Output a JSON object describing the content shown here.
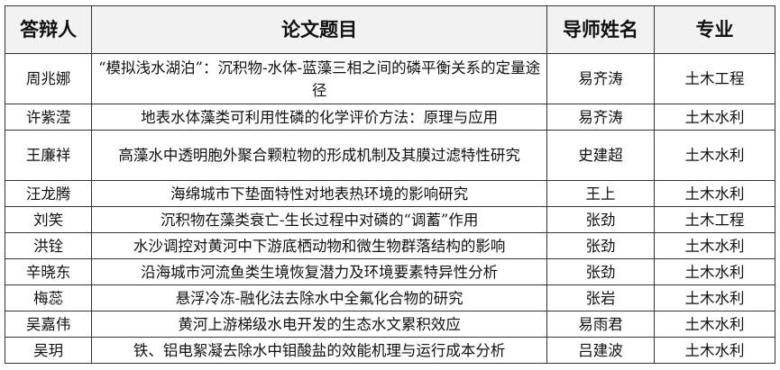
{
  "headers": [
    "答辩人",
    "论文题目",
    "导师姓名",
    "专业"
  ],
  "rows": [
    {
      "name": "周兆娜",
      "title": "“模拟浅水湖泊”：沉积物-水体-蓝藻三相之间的磷平衡关系的定量途径",
      "advisor": "易齐涛",
      "major": "土木工程"
    },
    {
      "name": "许紫滢",
      "title": "地表水体藻类可利用性磷的化学评价方法：原理与应用",
      "advisor": "易齐涛",
      "major": "土木水利"
    },
    {
      "name": "王廉祥",
      "title": "高藻水中透明胞外聚合颗粒物的形成机制及其膜过滤特性研究",
      "advisor": "史建超",
      "major": "土木水利"
    },
    {
      "name": "汪龙腾",
      "title": "海绵城市下垫面特性对地表热环境的影响研究",
      "advisor": "王上",
      "major": "土木水利"
    },
    {
      "name": "刘笑",
      "title": "沉积物在藻类衰亡-生长过程中对磷的“调蓄”作用",
      "advisor": "张劲",
      "major": "土木工程"
    },
    {
      "name": "洪铨",
      "title": "水沙调控对黄河中下游底栖动物和微生物群落结构的影响",
      "advisor": "张劲",
      "major": "土木水利"
    },
    {
      "name": "辛晓东",
      "title": "沿海城市河流鱼类生境恢复潜力及环境要素特异性分析",
      "advisor": "张劲",
      "major": "土木水利"
    },
    {
      "name": "梅蕊",
      "title": "悬浮冷冻-融化法去除水中全氟化合物的研究",
      "advisor": "张岩",
      "major": "土木水利"
    },
    {
      "name": "吴嘉伟",
      "title": "黄河上游梯级水电开发的生态水文累积效应",
      "advisor": "易雨君",
      "major": "土木水利"
    },
    {
      "name": "吴玥",
      "title": "铁、铝电絮凝去除水中钼酸盐的效能机理与运行成本分析",
      "advisor": "吕建波",
      "major": "土木水利"
    }
  ]
}
